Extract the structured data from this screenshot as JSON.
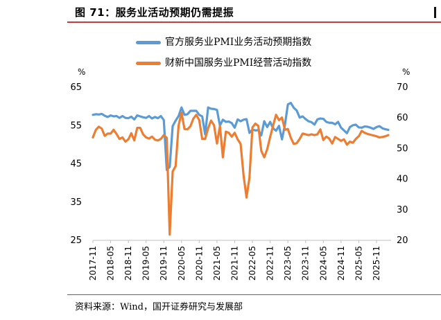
{
  "header": {
    "title": "图 71：服务业活动预期仍需提振"
  },
  "footer": {
    "source": "资料来源：Wind，国开证券研究与发展部"
  },
  "colors": {
    "accent_rule": "#c9383a",
    "series_blue": "#5b9bd5",
    "series_orange": "#ed7d31"
  },
  "chart_data": {
    "type": "line",
    "title": "",
    "xlabel": "",
    "left_axis": {
      "unit": "%",
      "ylim": [
        25,
        65
      ],
      "ticks": [
        25,
        35,
        45,
        55,
        65
      ]
    },
    "right_axis": {
      "unit": "%",
      "ylim": [
        20,
        70
      ],
      "ticks": [
        20,
        30,
        40,
        50,
        60,
        70
      ]
    },
    "x_ticks": [
      "2017-11",
      "2018-05",
      "2018-11",
      "2019-05",
      "2019-11",
      "2020-05",
      "2020-11",
      "2021-05",
      "2021-11",
      "2022-05",
      "2022-11",
      "2023-05",
      "2023-11",
      "2024-05",
      "2024-11",
      "2025-05",
      "2025-11"
    ],
    "series": [
      {
        "name": "官方服务业PMI业务活动预期指数",
        "axis": "right",
        "x_start": "2017-11",
        "values": [
          61.0,
          61.2,
          61.1,
          61.3,
          60.7,
          60.3,
          60.8,
          60.5,
          60.6,
          60.0,
          60.6,
          60.0,
          59.9,
          60.4,
          59.5,
          60.8,
          60.5,
          60.2,
          60.0,
          60.6,
          59.8,
          60.3,
          59.9,
          60.6,
          59.3,
          43.0,
          44.0,
          57.3,
          59.1,
          60.6,
          63.4,
          61.0,
          61.2,
          62.3,
          62.3,
          62.3,
          61.0,
          60.5,
          54.6,
          63.4,
          63.0,
          62.9,
          62.6,
          57.5,
          59.4,
          58.7,
          58.8,
          58.3,
          56.8,
          59.5,
          58.9,
          59.4,
          59.6,
          55.1,
          56.2,
          55.9,
          56.0,
          54.3,
          58.9,
          57.0,
          58.7,
          56.6,
          55.8,
          57.4,
          53.0,
          57.7,
          64.4,
          64.9,
          63.3,
          62.4,
          60.1,
          60.5,
          59.6,
          58.9,
          58.6,
          57.8,
          59.5,
          59.8,
          59.7,
          58.7,
          58.4,
          58.4,
          57.9,
          58.7,
          56.8,
          55.9,
          55.0,
          57.0,
          57.6,
          57.8,
          56.9,
          56.8,
          57.2,
          57.1,
          56.8,
          56.4,
          57.0,
          57.3,
          56.6,
          56.3,
          56.1
        ]
      },
      {
        "name": "财新中国服务业PMI经营活动指数",
        "axis": "left",
        "x_start": "2017-11",
        "values": [
          51.9,
          53.9,
          54.7,
          54.2,
          52.3,
          52.9,
          52.9,
          53.9,
          52.8,
          51.5,
          51.9,
          50.8,
          51.4,
          53.0,
          51.1,
          54.4,
          54.4,
          52.7,
          51.9,
          51.6,
          52.1,
          51.3,
          51.1,
          51.5,
          52.5,
          51.8,
          26.5,
          43.0,
          44.4,
          55.0,
          58.4,
          54.1,
          54.0,
          54.8,
          56.8,
          57.8,
          56.4,
          51.5,
          51.5,
          54.3,
          56.3,
          55.1,
          50.3,
          54.9,
          46.7,
          53.4,
          53.1,
          52.1,
          53.1,
          51.4,
          50.2,
          42.0,
          36.2,
          41.4,
          54.5,
          55.5,
          54.9,
          48.4,
          46.7,
          48.8,
          52.0,
          55.0,
          57.8,
          56.4,
          57.1,
          53.9,
          54.1,
          51.8,
          50.2,
          50.4,
          51.5,
          52.9,
          52.7,
          52.5,
          52.7,
          52.5,
          52.7,
          54.0,
          51.2,
          52.1,
          51.6,
          50.3,
          52.0,
          51.5,
          51.0,
          51.4,
          50.0,
          50.8,
          50.5,
          51.5,
          52.2,
          53.6,
          53.1,
          52.8,
          52.6,
          52.4,
          52.2,
          51.9,
          52.0,
          52.2,
          52.5
        ]
      }
    ],
    "legend_position": "top-center",
    "grid": false
  }
}
